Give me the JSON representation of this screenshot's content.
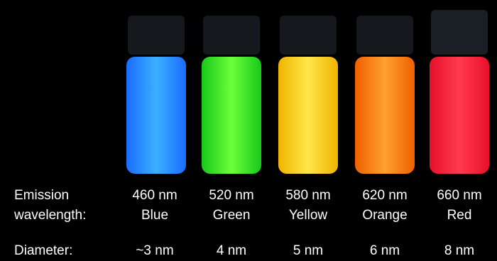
{
  "labels": {
    "emission": [
      "Emission",
      "wavelength:"
    ],
    "diameter": "Diameter:"
  },
  "vials": [
    {
      "wavelength": "460 nm",
      "color": "Blue",
      "diameter": "~3 nm"
    },
    {
      "wavelength": "520 nm",
      "color": "Green",
      "diameter": "4 nm"
    },
    {
      "wavelength": "580 nm",
      "color": "Yellow",
      "diameter": "5 nm"
    },
    {
      "wavelength": "620 nm",
      "color": "Orange",
      "diameter": "6 nm"
    },
    {
      "wavelength": "660 nm",
      "color": "Red",
      "diameter": "8 nm"
    }
  ]
}
